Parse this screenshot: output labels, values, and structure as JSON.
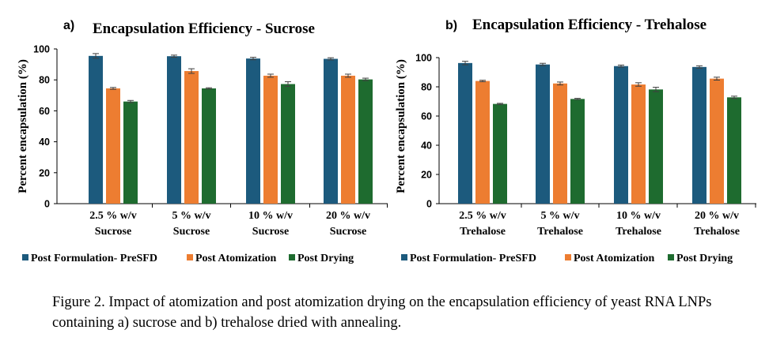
{
  "colors": {
    "Post Formulation- PreSFD": "#1c5a7d",
    "Post Atomization": "#ed7d31",
    "Post Drying": "#1e6b2f",
    "errorbar": "#404040"
  },
  "chart_data": [
    {
      "type": "bar",
      "panel": "a)",
      "title": "Encapsulation Efficiency - Sucrose",
      "xlabel": "",
      "ylabel": "Percent encapsulation (%)",
      "ylim": [
        0,
        100
      ],
      "yticks": [
        0,
        20,
        40,
        60,
        80,
        100
      ],
      "grid": false,
      "legend_position": "bottom",
      "categories": [
        [
          "2.5 % w/v",
          "Sucrose"
        ],
        [
          "5 % w/v",
          "Sucrose"
        ],
        [
          "10 % w/v",
          "Sucrose"
        ],
        [
          "20 % w/v",
          "Sucrose"
        ]
      ],
      "series": [
        {
          "name": "Post Formulation- PreSFD",
          "values": [
            95.5,
            95.3,
            93.8,
            93.6
          ],
          "errors": [
            1.5,
            0.7,
            0.8,
            0.7
          ]
        },
        {
          "name": "Post Atomization",
          "values": [
            74.5,
            85.7,
            82.7,
            82.7
          ],
          "errors": [
            0.6,
            1.5,
            1.0,
            1.0
          ]
        },
        {
          "name": "Post Drying",
          "values": [
            66.0,
            74.5,
            77.3,
            80.3
          ],
          "errors": [
            0.7,
            0.4,
            1.5,
            0.8
          ]
        }
      ]
    },
    {
      "type": "bar",
      "panel": "b)",
      "title": "Encapsulation Efficiency - Trehalose",
      "xlabel": "",
      "ylabel": "Percent encapsulation (%)",
      "ylim": [
        0,
        100
      ],
      "yticks": [
        0,
        20,
        40,
        60,
        80,
        100
      ],
      "grid": false,
      "legend_position": "bottom",
      "categories": [
        [
          "2.5 % w/v",
          "Trehalose"
        ],
        [
          "5 % w/v",
          "Trehalose"
        ],
        [
          "10 % w/v",
          "Trehalose"
        ],
        [
          "20 % w/v",
          "Trehalose"
        ]
      ],
      "series": [
        {
          "name": "Post Formulation- PreSFD",
          "values": [
            96.3,
            95.3,
            94.2,
            93.6
          ],
          "errors": [
            1.2,
            0.8,
            0.7,
            0.8
          ]
        },
        {
          "name": "Post Atomization",
          "values": [
            84.0,
            82.3,
            81.6,
            85.6
          ],
          "errors": [
            0.5,
            1.0,
            1.2,
            1.0
          ]
        },
        {
          "name": "Post Drying",
          "values": [
            68.3,
            71.7,
            78.2,
            72.8
          ],
          "errors": [
            0.4,
            0.4,
            1.5,
            0.8
          ]
        }
      ]
    }
  ],
  "caption": "Figure 2. Impact of atomization and post atomization drying on the encapsulation efficiency of yeast RNA LNPs containing a) sucrose and b) trehalose dried with annealing."
}
